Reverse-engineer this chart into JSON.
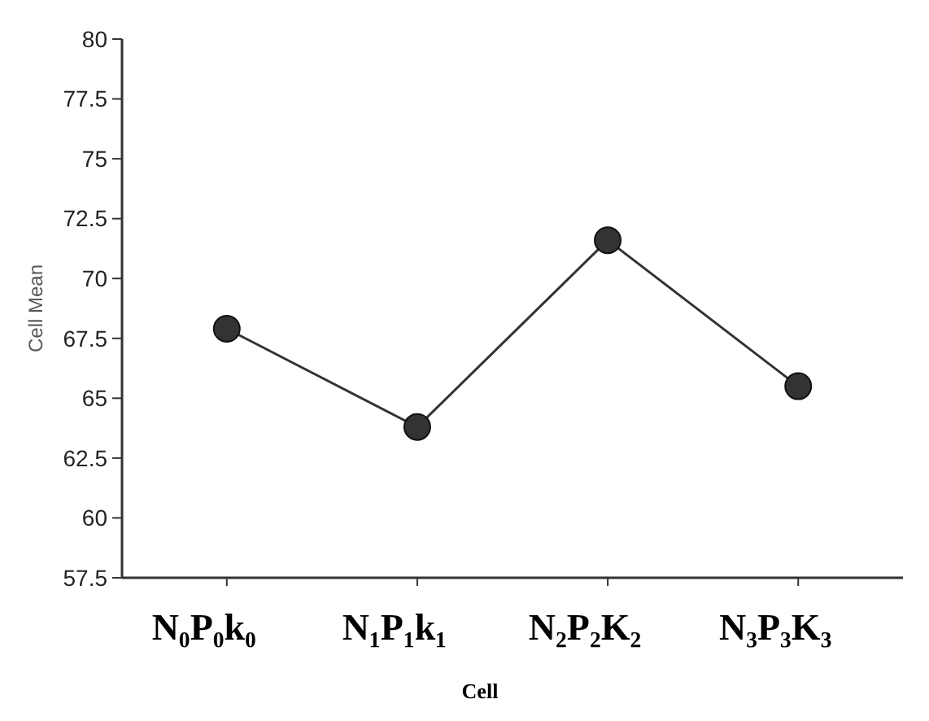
{
  "chart_data": {
    "type": "line",
    "xlabel": "Cell",
    "ylabel": "Cell Mean",
    "categories": [
      "N₀P₀k₀",
      "N₁P₁k₁",
      "N₂P₂K₂",
      "N₃P₃K₃"
    ],
    "series": [
      {
        "color": "#333333",
        "values": [
          67.9,
          63.8,
          71.6,
          65.5
        ]
      }
    ],
    "ylim": [
      57.5,
      80
    ],
    "yticks": [
      57.5,
      60,
      62.5,
      65,
      67.5,
      70,
      72.5,
      75,
      77.5,
      80
    ],
    "grid": false,
    "marker": "circle",
    "line_style": "solid"
  }
}
